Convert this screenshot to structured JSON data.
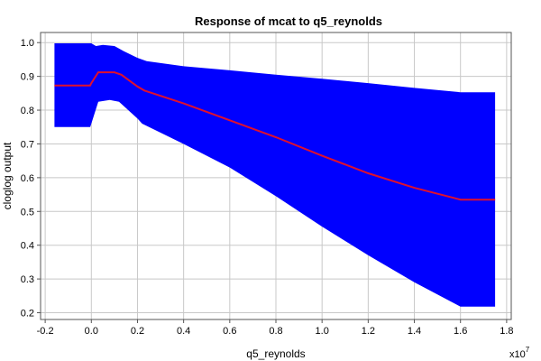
{
  "chart_data": {
    "type": "area",
    "title": "Response of mcat to q5_reynolds",
    "xlabel": "q5_reynolds",
    "ylabel": "cloglog output",
    "x_exponent_label": "x10",
    "x_exponent_power": "7",
    "xlim": [
      -0.22,
      1.82
    ],
    "ylim": [
      0.18,
      1.03
    ],
    "x_ticks": [
      -0.2,
      0.0,
      0.2,
      0.4,
      0.6,
      0.8,
      1.0,
      1.2,
      1.4,
      1.6,
      1.8
    ],
    "x_tick_labels": [
      "-0.2",
      "0.0",
      "0.2",
      "0.4",
      "0.6",
      "0.8",
      "1.0",
      "1.2",
      "1.4",
      "1.6",
      "1.8"
    ],
    "y_ticks": [
      0.2,
      0.3,
      0.4,
      0.5,
      0.6,
      0.7,
      0.8,
      0.9,
      1.0
    ],
    "y_tick_labels": [
      "0.2",
      "0.3",
      "0.4",
      "0.5",
      "0.6",
      "0.7",
      "0.8",
      "0.9",
      "1.0"
    ],
    "grid": true,
    "series": [
      {
        "role": "mean",
        "color": "#e0102c",
        "x": [
          -0.16,
          -0.005,
          0.0,
          0.03,
          0.1,
          0.13,
          0.2,
          0.23,
          0.4,
          0.6,
          0.8,
          1.0,
          1.2,
          1.4,
          1.6,
          1.75
        ],
        "y": [
          0.873,
          0.873,
          0.88,
          0.912,
          0.912,
          0.905,
          0.87,
          0.858,
          0.82,
          0.77,
          0.72,
          0.665,
          0.613,
          0.57,
          0.535,
          0.535
        ]
      },
      {
        "role": "band-upper",
        "color": "#0000ff",
        "x": [
          -0.16,
          0.0,
          0.02,
          0.05,
          0.1,
          0.14,
          0.2,
          0.24,
          0.4,
          0.6,
          0.8,
          1.0,
          1.2,
          1.4,
          1.6,
          1.75
        ],
        "y": [
          0.998,
          0.998,
          0.99,
          0.993,
          0.99,
          0.975,
          0.955,
          0.945,
          0.93,
          0.918,
          0.905,
          0.893,
          0.88,
          0.866,
          0.853,
          0.853
        ]
      },
      {
        "role": "band-lower",
        "color": "#0000ff",
        "x": [
          -0.16,
          -0.005,
          0.0,
          0.03,
          0.08,
          0.12,
          0.16,
          0.2,
          0.22,
          0.4,
          0.6,
          0.8,
          1.0,
          1.2,
          1.4,
          1.6,
          1.75
        ],
        "y": [
          0.75,
          0.75,
          0.76,
          0.825,
          0.83,
          0.825,
          0.8,
          0.775,
          0.76,
          0.7,
          0.63,
          0.545,
          0.455,
          0.37,
          0.29,
          0.218,
          0.218
        ]
      }
    ]
  }
}
